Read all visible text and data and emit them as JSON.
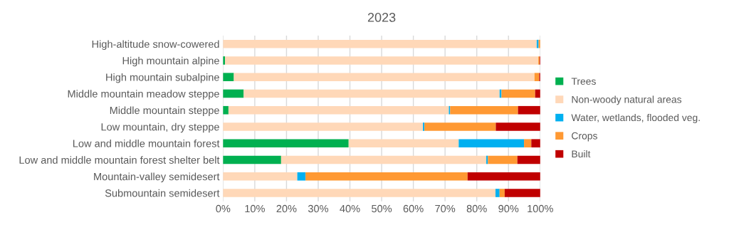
{
  "chart_data": {
    "type": "bar",
    "title": "2023",
    "orientation": "horizontal",
    "stacked": true,
    "categories": [
      "High-altitude snow-cowered",
      "High mountain alpine",
      "High mountain subalpine",
      "Middle mountain meadow steppe",
      "Middle mountain steppe",
      "Low mountain, dry steppe",
      "Low and middle mountain forest",
      "Low and middle mountain forest shelter belt",
      "Mountain-valley semidesert",
      "Submountain semidesert"
    ],
    "series": [
      {
        "name": "Trees",
        "color": "#00b050",
        "values": [
          0,
          0.6,
          3.4,
          6.5,
          1.7,
          0,
          39.6,
          18.3,
          0,
          0
        ]
      },
      {
        "name": "Non-woody natural areas",
        "color": "#ffd8b8",
        "values": [
          98.9,
          98.8,
          94.8,
          80.7,
          69.5,
          63.0,
          34.7,
          64.7,
          23.4,
          85.9
        ]
      },
      {
        "name": "Water, wetlands, flooded veg.",
        "color": "#00b0f0",
        "values": [
          0.6,
          0,
          0,
          0.6,
          0.4,
          0.5,
          20.6,
          0.5,
          2.6,
          1.3
        ]
      },
      {
        "name": "Crops",
        "color": "#ff9933",
        "values": [
          0.5,
          0.4,
          1.5,
          10.6,
          21.4,
          22.5,
          2.3,
          9.3,
          51.1,
          1.6
        ]
      },
      {
        "name": "Built",
        "color": "#c00000",
        "values": [
          0,
          0.2,
          0.3,
          1.6,
          7.0,
          14.0,
          2.8,
          7.2,
          22.9,
          11.2
        ]
      }
    ],
    "xlim": [
      0,
      100
    ],
    "xticks": [
      {
        "value": 0,
        "label": "0%"
      },
      {
        "value": 10,
        "label": "10%"
      },
      {
        "value": 20,
        "label": "20%"
      },
      {
        "value": 30,
        "label": "30%"
      },
      {
        "value": 40,
        "label": "40%"
      },
      {
        "value": 50,
        "label": "50%"
      },
      {
        "value": 60,
        "label": "60%"
      },
      {
        "value": 70,
        "label": "70%"
      },
      {
        "value": 80,
        "label": "80%"
      },
      {
        "value": 90,
        "label": "90%"
      },
      {
        "value": 100,
        "label": "100%"
      }
    ],
    "grid": "x",
    "legend": "right"
  }
}
